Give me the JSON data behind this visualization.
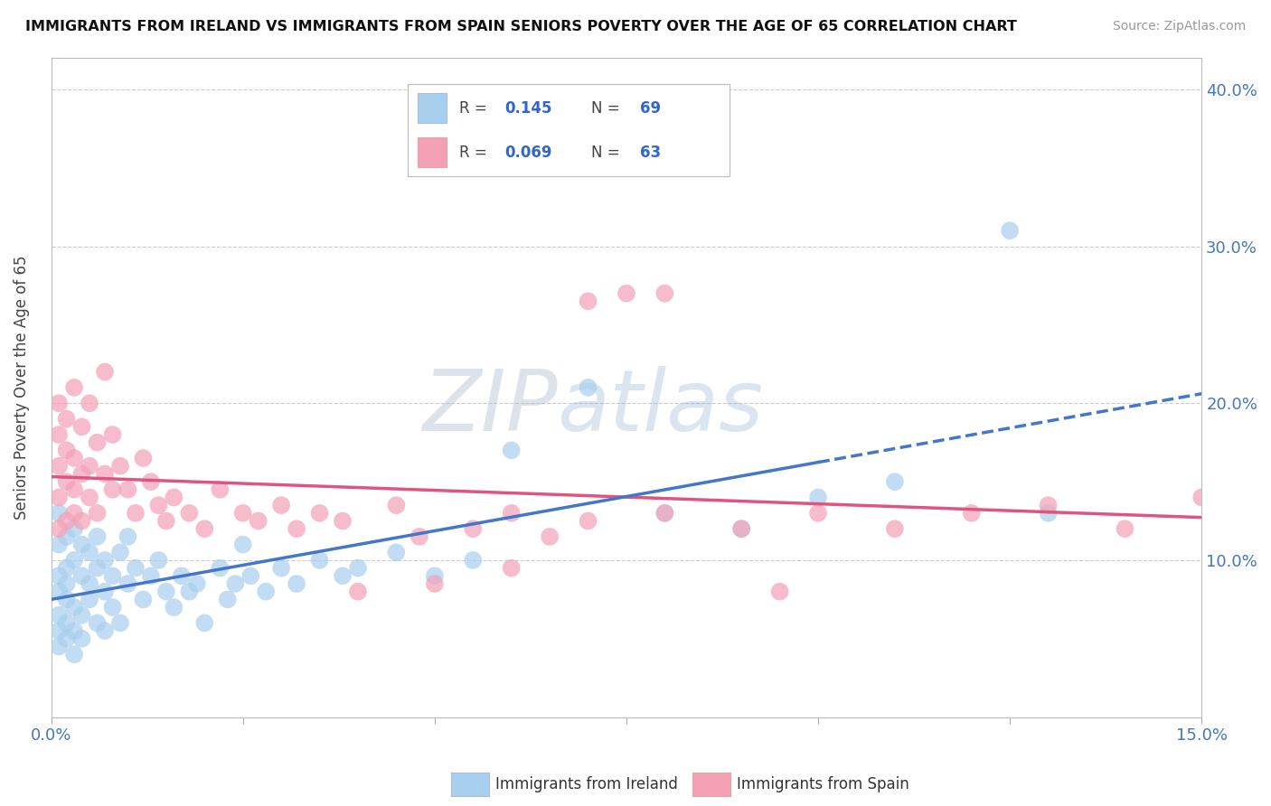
{
  "title": "IMMIGRANTS FROM IRELAND VS IMMIGRANTS FROM SPAIN SENIORS POVERTY OVER THE AGE OF 65 CORRELATION CHART",
  "source": "Source: ZipAtlas.com",
  "ylabel": "Seniors Poverty Over the Age of 65",
  "xlim": [
    0.0,
    0.15
  ],
  "ylim": [
    0.0,
    0.42
  ],
  "xtick_vals": [
    0.0,
    0.025,
    0.05,
    0.075,
    0.1,
    0.125,
    0.15
  ],
  "xtick_labels": [
    "0.0%",
    "",
    "",
    "",
    "",
    "",
    "15.0%"
  ],
  "ytick_vals": [
    0.0,
    0.1,
    0.2,
    0.3,
    0.4
  ],
  "ytick_labels": [
    "",
    "10.0%",
    "20.0%",
    "30.0%",
    "40.0%"
  ],
  "ireland_color": "#A8CFEE",
  "spain_color": "#F4A0B5",
  "ireland_line_color": "#4477CC",
  "spain_line_color": "#E05580",
  "ireland_R": 0.145,
  "ireland_N": 69,
  "spain_R": 0.069,
  "spain_N": 63,
  "legend_label_ireland": "Immigrants from Ireland",
  "legend_label_spain": "Immigrants from Spain",
  "ireland_x": [
    0.001,
    0.001,
    0.001,
    0.001,
    0.001,
    0.001,
    0.001,
    0.002,
    0.002,
    0.002,
    0.002,
    0.002,
    0.002,
    0.003,
    0.003,
    0.003,
    0.003,
    0.003,
    0.004,
    0.004,
    0.004,
    0.004,
    0.005,
    0.005,
    0.005,
    0.006,
    0.006,
    0.006,
    0.007,
    0.007,
    0.007,
    0.008,
    0.008,
    0.009,
    0.009,
    0.01,
    0.01,
    0.011,
    0.012,
    0.013,
    0.014,
    0.015,
    0.016,
    0.017,
    0.018,
    0.019,
    0.02,
    0.022,
    0.023,
    0.024,
    0.025,
    0.026,
    0.028,
    0.03,
    0.032,
    0.035,
    0.038,
    0.04,
    0.045,
    0.05,
    0.055,
    0.06,
    0.07,
    0.08,
    0.09,
    0.1,
    0.11,
    0.125,
    0.13
  ],
  "ireland_y": [
    0.09,
    0.13,
    0.08,
    0.11,
    0.065,
    0.055,
    0.045,
    0.095,
    0.075,
    0.06,
    0.115,
    0.085,
    0.05,
    0.1,
    0.07,
    0.12,
    0.055,
    0.04,
    0.09,
    0.11,
    0.065,
    0.05,
    0.085,
    0.105,
    0.075,
    0.095,
    0.06,
    0.115,
    0.08,
    0.1,
    0.055,
    0.09,
    0.07,
    0.105,
    0.06,
    0.085,
    0.115,
    0.095,
    0.075,
    0.09,
    0.1,
    0.08,
    0.07,
    0.09,
    0.08,
    0.085,
    0.06,
    0.095,
    0.075,
    0.085,
    0.11,
    0.09,
    0.08,
    0.095,
    0.085,
    0.1,
    0.09,
    0.095,
    0.105,
    0.09,
    0.1,
    0.17,
    0.21,
    0.13,
    0.12,
    0.14,
    0.15,
    0.31,
    0.13
  ],
  "spain_x": [
    0.001,
    0.001,
    0.001,
    0.001,
    0.001,
    0.002,
    0.002,
    0.002,
    0.002,
    0.003,
    0.003,
    0.003,
    0.003,
    0.004,
    0.004,
    0.004,
    0.005,
    0.005,
    0.005,
    0.006,
    0.006,
    0.007,
    0.007,
    0.008,
    0.008,
    0.009,
    0.01,
    0.011,
    0.012,
    0.013,
    0.014,
    0.015,
    0.016,
    0.018,
    0.02,
    0.022,
    0.025,
    0.027,
    0.03,
    0.032,
    0.035,
    0.038,
    0.04,
    0.045,
    0.048,
    0.05,
    0.055,
    0.06,
    0.065,
    0.07,
    0.075,
    0.08,
    0.09,
    0.095,
    0.1,
    0.11,
    0.12,
    0.13,
    0.14,
    0.15,
    0.06,
    0.07,
    0.08
  ],
  "spain_y": [
    0.18,
    0.14,
    0.2,
    0.16,
    0.12,
    0.19,
    0.15,
    0.125,
    0.17,
    0.145,
    0.21,
    0.165,
    0.13,
    0.155,
    0.185,
    0.125,
    0.16,
    0.14,
    0.2,
    0.175,
    0.13,
    0.155,
    0.22,
    0.145,
    0.18,
    0.16,
    0.145,
    0.13,
    0.165,
    0.15,
    0.135,
    0.125,
    0.14,
    0.13,
    0.12,
    0.145,
    0.13,
    0.125,
    0.135,
    0.12,
    0.13,
    0.125,
    0.08,
    0.135,
    0.115,
    0.085,
    0.12,
    0.13,
    0.115,
    0.125,
    0.27,
    0.13,
    0.12,
    0.08,
    0.13,
    0.12,
    0.13,
    0.135,
    0.12,
    0.14,
    0.095,
    0.265,
    0.27
  ]
}
